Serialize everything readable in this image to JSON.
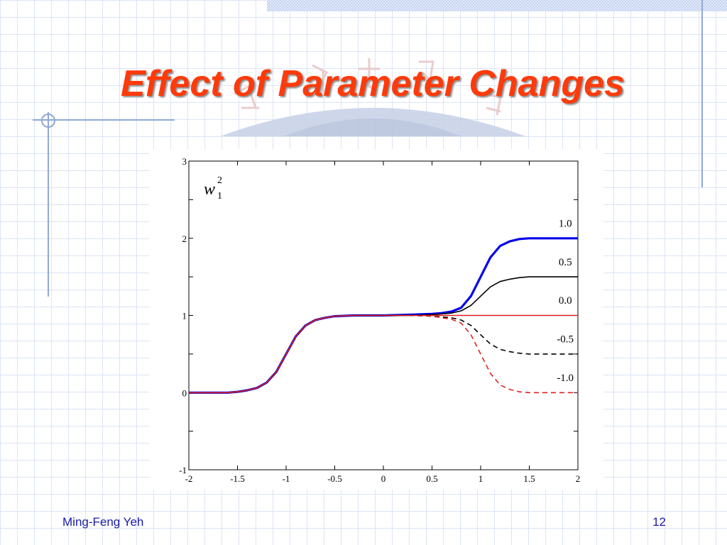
{
  "slide": {
    "title": "Effect of Parameter Changes",
    "author": "Ming-Feng Yeh",
    "page_number": "12"
  },
  "colors": {
    "title": "#ff3a0a",
    "footer_text": "#1a1aa8",
    "series_blue": "#0000ee",
    "series_black": "#000000",
    "series_red": "#e02020"
  },
  "chart_data": {
    "type": "line",
    "title": "",
    "ylabel": "w",
    "ylabel_superscript": "2",
    "ylabel_subscript": "1",
    "xlim": [
      -2,
      2
    ],
    "ylim": [
      -1,
      3
    ],
    "xticks": [
      "-2",
      "-1.5",
      "-1",
      "-0.5",
      "0",
      "0.5",
      "1",
      "1.5",
      "2"
    ],
    "yticks": [
      "-1",
      "0",
      "1",
      "2",
      "3"
    ],
    "grid": false,
    "series": [
      {
        "name": "1.0",
        "color": "#0000ee",
        "style": "solid-thick",
        "x": [
          -2,
          -1.6,
          -1.5,
          -1.4,
          -1.3,
          -1.2,
          -1.1,
          -1.0,
          -0.9,
          -0.8,
          -0.7,
          -0.6,
          -0.5,
          -0.3,
          0,
          0.3,
          0.5,
          0.6,
          0.7,
          0.8,
          0.9,
          1.0,
          1.1,
          1.2,
          1.3,
          1.4,
          1.5,
          1.6,
          1.7,
          2.0
        ],
        "y": [
          0.0,
          0.0,
          0.01,
          0.03,
          0.06,
          0.13,
          0.27,
          0.5,
          0.73,
          0.87,
          0.94,
          0.97,
          0.99,
          1.0,
          1.0,
          1.01,
          1.02,
          1.03,
          1.05,
          1.1,
          1.25,
          1.5,
          1.75,
          1.9,
          1.96,
          1.99,
          2.0,
          2.0,
          2.0,
          2.0
        ]
      },
      {
        "name": "0.5",
        "color": "#000000",
        "style": "solid",
        "x": [
          -2,
          -1.6,
          -1.5,
          -1.4,
          -1.3,
          -1.2,
          -1.1,
          -1.0,
          -0.9,
          -0.8,
          -0.7,
          -0.6,
          -0.5,
          -0.3,
          0,
          0.3,
          0.5,
          0.6,
          0.7,
          0.8,
          0.9,
          1.0,
          1.1,
          1.2,
          1.3,
          1.4,
          1.5,
          1.6,
          1.7,
          2.0
        ],
        "y": [
          0.0,
          0.0,
          0.01,
          0.03,
          0.06,
          0.13,
          0.27,
          0.5,
          0.73,
          0.87,
          0.94,
          0.97,
          0.99,
          1.0,
          1.0,
          1.0,
          1.01,
          1.02,
          1.03,
          1.06,
          1.13,
          1.25,
          1.37,
          1.44,
          1.47,
          1.49,
          1.5,
          1.5,
          1.5,
          1.5
        ]
      },
      {
        "name": "0.0",
        "color": "#e02020",
        "style": "solid",
        "x": [
          -2,
          -1.6,
          -1.5,
          -1.4,
          -1.3,
          -1.2,
          -1.1,
          -1.0,
          -0.9,
          -0.8,
          -0.7,
          -0.6,
          -0.5,
          -0.3,
          0,
          2.0
        ],
        "y": [
          0.0,
          0.0,
          0.01,
          0.03,
          0.06,
          0.13,
          0.27,
          0.5,
          0.73,
          0.87,
          0.94,
          0.97,
          0.99,
          1.0,
          1.0,
          1.0
        ]
      },
      {
        "name": "-0.5",
        "color": "#000000",
        "style": "dashed",
        "x": [
          0,
          0.3,
          0.5,
          0.6,
          0.7,
          0.8,
          0.9,
          1.0,
          1.1,
          1.2,
          1.3,
          1.4,
          1.5,
          1.6,
          1.7,
          2.0
        ],
        "y": [
          1.0,
          1.0,
          0.99,
          0.98,
          0.97,
          0.94,
          0.87,
          0.75,
          0.63,
          0.56,
          0.53,
          0.51,
          0.5,
          0.5,
          0.5,
          0.5
        ]
      },
      {
        "name": "-1.0",
        "color": "#e02020",
        "style": "dashed",
        "x": [
          0,
          0.3,
          0.5,
          0.6,
          0.7,
          0.8,
          0.9,
          1.0,
          1.1,
          1.2,
          1.3,
          1.4,
          1.5,
          1.6,
          1.7,
          2.0
        ],
        "y": [
          1.0,
          1.0,
          0.99,
          0.97,
          0.95,
          0.9,
          0.75,
          0.5,
          0.25,
          0.1,
          0.04,
          0.01,
          0.0,
          0.0,
          0.0,
          0.0
        ]
      }
    ],
    "annotations": [
      {
        "text": "1.0",
        "x": 1.87,
        "y": 2.15
      },
      {
        "text": "0.5",
        "x": 1.87,
        "y": 1.65
      },
      {
        "text": "0.0",
        "x": 1.87,
        "y": 1.15
      },
      {
        "text": "-0.5",
        "x": 1.87,
        "y": 0.65
      },
      {
        "text": "-1.0",
        "x": 1.87,
        "y": 0.15
      }
    ]
  }
}
